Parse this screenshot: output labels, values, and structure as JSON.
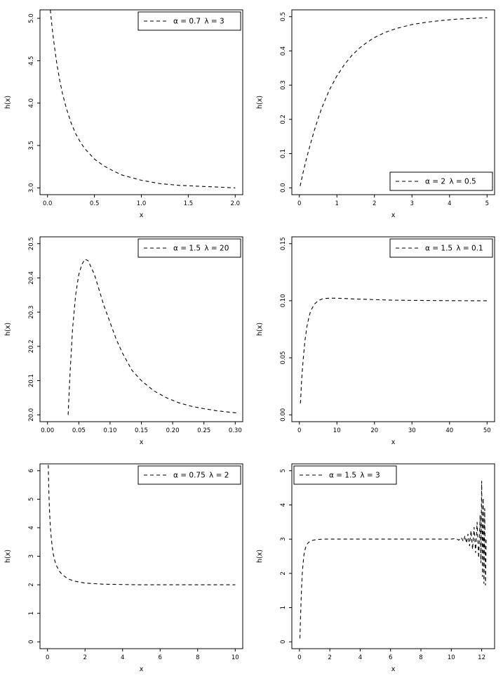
{
  "page": {
    "background": "#ffffff",
    "line_color": "#000000",
    "description": "Grid of six hazard function plots h(x) with dashed curves for different alpha and lambda parameters"
  },
  "chart_data": [
    {
      "type": "line",
      "line_style": "dashed",
      "xlabel": "x",
      "ylabel": "h(x)",
      "xlim": [
        -0.08,
        2.08
      ],
      "ylim": [
        2.92,
        5.1
      ],
      "xticks": [
        0.0,
        0.5,
        1.0,
        1.5,
        2.0
      ],
      "yticks": [
        3.0,
        3.5,
        4.0,
        4.5,
        5.0
      ],
      "xtick_labels": [
        "0.0",
        "0.5",
        "1.0",
        "1.5",
        "2.0"
      ],
      "ytick_labels": [
        "3.0",
        "3.5",
        "4.0",
        "4.5",
        "5.0"
      ],
      "legend": {
        "alpha": "α = 0.7",
        "lambda": "λ = 3",
        "position": "top-right"
      },
      "x": [
        0.03,
        0.05,
        0.07,
        0.1,
        0.13,
        0.16,
        0.2,
        0.25,
        0.3,
        0.35,
        0.4,
        0.5,
        0.6,
        0.7,
        0.8,
        0.9,
        1.0,
        1.1,
        1.2,
        1.4,
        1.6,
        1.8,
        2.0
      ],
      "y": [
        5.1,
        4.88,
        4.7,
        4.46,
        4.27,
        4.11,
        3.94,
        3.77,
        3.64,
        3.54,
        3.46,
        3.34,
        3.26,
        3.2,
        3.15,
        3.12,
        3.09,
        3.07,
        3.05,
        3.03,
        3.02,
        3.01,
        3.0
      ]
    },
    {
      "type": "line",
      "line_style": "dashed",
      "xlabel": "x",
      "ylabel": "h(x)",
      "xlim": [
        -0.2,
        5.2
      ],
      "ylim": [
        -0.02,
        0.52
      ],
      "xticks": [
        0,
        1,
        2,
        3,
        4,
        5
      ],
      "yticks": [
        0.0,
        0.1,
        0.2,
        0.3,
        0.4,
        0.5
      ],
      "xtick_labels": [
        "0",
        "1",
        "2",
        "3",
        "4",
        "5"
      ],
      "ytick_labels": [
        "0.0",
        "0.1",
        "0.2",
        "0.3",
        "0.4",
        "0.5"
      ],
      "legend": {
        "alpha": "α = 2",
        "lambda": "λ = 0.5",
        "position": "bottom-right"
      },
      "x": [
        0.02,
        0.1,
        0.2,
        0.3,
        0.4,
        0.5,
        0.6,
        0.8,
        1.0,
        1.2,
        1.4,
        1.6,
        1.8,
        2.0,
        2.3,
        2.6,
        3.0,
        3.4,
        3.8,
        4.2,
        4.6,
        5.0
      ],
      "y": [
        0.005,
        0.045,
        0.09,
        0.13,
        0.168,
        0.203,
        0.234,
        0.286,
        0.327,
        0.36,
        0.387,
        0.408,
        0.425,
        0.439,
        0.455,
        0.466,
        0.477,
        0.484,
        0.489,
        0.493,
        0.495,
        0.497
      ]
    },
    {
      "type": "line",
      "line_style": "dashed",
      "xlabel": "x",
      "ylabel": "h(x)",
      "xlim": [
        -0.012,
        0.312
      ],
      "ylim": [
        19.98,
        20.52
      ],
      "xticks": [
        0.0,
        0.05,
        0.1,
        0.15,
        0.2,
        0.25,
        0.3
      ],
      "yticks": [
        20.0,
        20.1,
        20.2,
        20.3,
        20.4,
        20.5
      ],
      "xtick_labels": [
        "0.00",
        "0.05",
        "0.10",
        "0.15",
        "0.20",
        "0.25",
        "0.30"
      ],
      "ytick_labels": [
        "20.0",
        "20.1",
        "20.2",
        "20.3",
        "20.4",
        "20.5"
      ],
      "legend": {
        "alpha": "α = 1.5",
        "lambda": "λ = 20",
        "position": "top-right"
      },
      "x": [
        0.033,
        0.036,
        0.04,
        0.045,
        0.05,
        0.055,
        0.06,
        0.065,
        0.07,
        0.075,
        0.08,
        0.09,
        0.1,
        0.11,
        0.12,
        0.135,
        0.15,
        0.17,
        0.19,
        0.21,
        0.23,
        0.25,
        0.27,
        0.29,
        0.305
      ],
      "y": [
        20.0,
        20.12,
        20.25,
        20.35,
        20.41,
        20.44,
        20.455,
        20.45,
        20.43,
        20.41,
        20.38,
        20.32,
        20.27,
        20.22,
        20.18,
        20.13,
        20.1,
        20.07,
        20.05,
        20.035,
        20.025,
        20.018,
        20.012,
        20.008,
        20.005
      ]
    },
    {
      "type": "line",
      "line_style": "dashed",
      "xlabel": "x",
      "ylabel": "h(x)",
      "xlim": [
        -2,
        52
      ],
      "ylim": [
        -0.006,
        0.156
      ],
      "xticks": [
        0,
        10,
        20,
        30,
        40,
        50
      ],
      "yticks": [
        0.0,
        0.05,
        0.1,
        0.15
      ],
      "xtick_labels": [
        "0",
        "10",
        "20",
        "30",
        "40",
        "50"
      ],
      "ytick_labels": [
        "0.00",
        "0.05",
        "0.10",
        "0.15"
      ],
      "legend": {
        "alpha": "α = 1.5",
        "lambda": "λ = 0.1",
        "position": "top-right"
      },
      "x": [
        0.3,
        0.6,
        1.0,
        1.5,
        2.0,
        2.5,
        3.0,
        4.0,
        5.0,
        6.0,
        7.0,
        8.0,
        10,
        12,
        15,
        20,
        25,
        30,
        35,
        40,
        45,
        50
      ],
      "y": [
        0.01,
        0.03,
        0.048,
        0.065,
        0.077,
        0.085,
        0.091,
        0.097,
        0.1,
        0.1015,
        0.102,
        0.1022,
        0.1022,
        0.102,
        0.1015,
        0.101,
        0.1005,
        0.1003,
        0.1002,
        0.1001,
        0.1,
        0.1
      ]
    },
    {
      "type": "line",
      "line_style": "dashed",
      "xlabel": "x",
      "ylabel": "h(x)",
      "xlim": [
        -0.4,
        10.4
      ],
      "ylim": [
        -0.24,
        6.24
      ],
      "xticks": [
        0,
        2,
        4,
        6,
        8,
        10
      ],
      "yticks": [
        0,
        1,
        2,
        3,
        4,
        5,
        6
      ],
      "xtick_labels": [
        "0",
        "2",
        "4",
        "6",
        "8",
        "10"
      ],
      "ytick_labels": [
        "0",
        "1",
        "2",
        "3",
        "4",
        "5",
        "6"
      ],
      "legend": {
        "alpha": "α = 0.75",
        "lambda": "λ = 2",
        "position": "top-right"
      },
      "x": [
        0.04,
        0.07,
        0.1,
        0.15,
        0.2,
        0.3,
        0.4,
        0.5,
        0.65,
        0.8,
        1.0,
        1.2,
        1.5,
        2.0,
        2.5,
        3.0,
        4.0,
        5.0,
        6.0,
        7.0,
        8.0,
        9.0,
        10.0
      ],
      "y": [
        6.2,
        5.3,
        4.7,
        4.05,
        3.62,
        3.1,
        2.82,
        2.64,
        2.46,
        2.35,
        2.25,
        2.18,
        2.12,
        2.06,
        2.04,
        2.02,
        2.01,
        2.0,
        2.0,
        2.0,
        2.0,
        2.0,
        2.0
      ]
    },
    {
      "type": "line",
      "line_style": "dashed",
      "xlabel": "x",
      "ylabel": "h(x)",
      "xlim": [
        -0.5,
        12.85
      ],
      "ylim": [
        -0.2,
        5.2
      ],
      "xticks": [
        0,
        2,
        4,
        6,
        8,
        10,
        12
      ],
      "yticks": [
        0,
        1,
        2,
        3,
        4,
        5
      ],
      "xtick_labels": [
        "0",
        "2",
        "4",
        "6",
        "8",
        "10",
        "12"
      ],
      "ytick_labels": [
        "0",
        "1",
        "2",
        "3",
        "4",
        "5"
      ],
      "legend": {
        "alpha": "α = 1.5",
        "lambda": "λ = 3",
        "position": "top-left"
      },
      "x": [
        0.03,
        0.06,
        0.1,
        0.15,
        0.2,
        0.3,
        0.4,
        0.55,
        0.7,
        0.9,
        1.2,
        1.6,
        2.0,
        3.0,
        4.0,
        5.0,
        6.0,
        7.0,
        8.0,
        9.0,
        9.5,
        10.0,
        10.3,
        10.5,
        10.65,
        10.8,
        10.9,
        11.0,
        11.1,
        11.2,
        11.3,
        11.4,
        11.5,
        11.6,
        11.7,
        11.8,
        11.85,
        11.9,
        11.95,
        12.0,
        12.05,
        12.1,
        12.15,
        12.2,
        12.25,
        12.3
      ],
      "y": [
        0.1,
        0.5,
        1.1,
        1.7,
        2.1,
        2.55,
        2.75,
        2.88,
        2.94,
        2.97,
        2.99,
        3.0,
        3.0,
        3.0,
        3.0,
        3.0,
        3.0,
        3.0,
        3.0,
        3.0,
        3.0,
        3.0,
        3.02,
        2.97,
        3.05,
        2.93,
        3.1,
        2.88,
        3.15,
        2.8,
        3.25,
        2.7,
        3.35,
        2.6,
        3.5,
        2.45,
        3.0,
        3.7,
        2.3,
        4.7,
        1.9,
        4.2,
        1.7,
        3.9,
        1.65,
        3.0
      ]
    }
  ]
}
